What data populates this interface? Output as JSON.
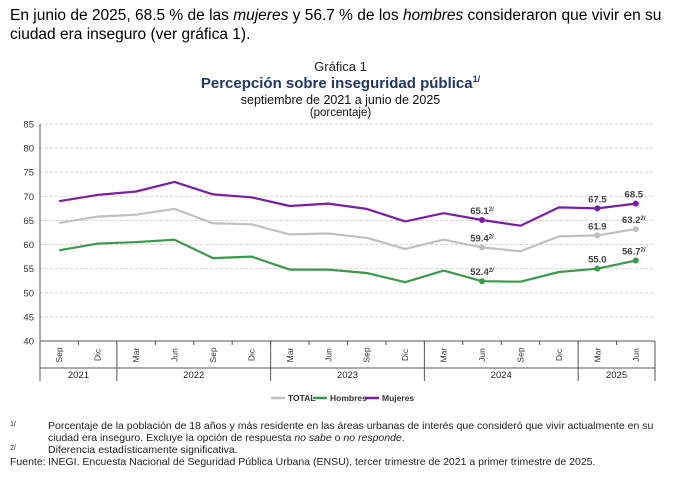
{
  "intro": {
    "p1": "En junio de 2025, 68.5 % de las ",
    "mujeres": "mujeres",
    "p2": " y 56.7 % de los ",
    "hombres": "hombres",
    "p3": " consideraron que vivir en su ciudad era inseguro (ver gráfica 1)."
  },
  "chart_data": {
    "type": "line",
    "label": "Gráfica 1",
    "title": "Percepción sobre inseguridad pública",
    "title_note": "1/",
    "subtitle": "septiembre de 2021 a junio de 2025",
    "unit": "(porcentaje)",
    "categories": [
      "Sep",
      "Dic",
      "Mar",
      "Jun",
      "Sep",
      "Dic",
      "Mar",
      "Jun",
      "Sep",
      "Dic",
      "Mar",
      "Jun",
      "Sep",
      "Dic",
      "Mar",
      "Jun"
    ],
    "years": [
      {
        "label": "2021",
        "span": 2
      },
      {
        "label": "2022",
        "span": 4
      },
      {
        "label": "2023",
        "span": 4
      },
      {
        "label": "2024",
        "span": 4
      },
      {
        "label": "2025",
        "span": 2
      }
    ],
    "ylim": [
      40,
      85
    ],
    "yticks": [
      40,
      45,
      50,
      55,
      60,
      65,
      70,
      75,
      80,
      85
    ],
    "grid": true,
    "legend_position": "bottom",
    "series": [
      {
        "name": "TOTAL",
        "color": "#c0c0c0",
        "values": [
          64.5,
          65.8,
          66.2,
          67.4,
          64.4,
          64.2,
          62.1,
          62.3,
          61.4,
          59.1,
          61.0,
          59.4,
          58.6,
          61.7,
          61.9,
          63.2
        ],
        "labels": [
          {
            "index": 11,
            "text": "59.4",
            "note": "2/"
          },
          {
            "index": 14,
            "text": "61.9",
            "note": ""
          },
          {
            "index": 15,
            "text": "63.2",
            "note": "2/"
          }
        ]
      },
      {
        "name": "Hombres",
        "color": "#3a9a4a",
        "values": [
          58.8,
          60.2,
          60.5,
          61.0,
          57.2,
          57.5,
          54.8,
          54.8,
          54.1,
          52.2,
          54.6,
          52.4,
          52.3,
          54.3,
          55.0,
          56.7
        ],
        "labels": [
          {
            "index": 11,
            "text": "52.4",
            "note": "2/"
          },
          {
            "index": 14,
            "text": "55.0",
            "note": ""
          },
          {
            "index": 15,
            "text": "56.7",
            "note": "2/"
          }
        ]
      },
      {
        "name": "Mujeres",
        "color": "#7b1fa2",
        "values": [
          69.0,
          70.3,
          71.0,
          73.0,
          70.4,
          69.8,
          68.0,
          68.5,
          67.4,
          64.8,
          66.5,
          65.1,
          63.9,
          67.7,
          67.5,
          68.5
        ],
        "labels": [
          {
            "index": 11,
            "text": "65.1",
            "note": "2/"
          },
          {
            "index": 14,
            "text": "67.5",
            "note": ""
          },
          {
            "index": 15,
            "text": "68.5",
            "note": ""
          }
        ]
      }
    ]
  },
  "notes": [
    {
      "mark": "1/",
      "text_a": "Porcentaje de la población de 18 años y más residente en las áreas urbanas de interés que consideró que vivir actualmente en su ciudad era inseguro. Excluye la opción de respuesta ",
      "em1": "no sabe",
      "text_b": " o ",
      "em2": "no responde",
      "text_c": "."
    },
    {
      "mark": "2/",
      "text_a": "Diferencia estadísticamente significativa.",
      "em1": "",
      "text_b": "",
      "em2": "",
      "text_c": ""
    }
  ],
  "source": {
    "label": "Fuente:",
    "text": "INEGI. Encuesta Nacional de Seguridad Pública Urbana (ENSU), tercer trimestre de 2021 a primer trimestre de 2025."
  }
}
